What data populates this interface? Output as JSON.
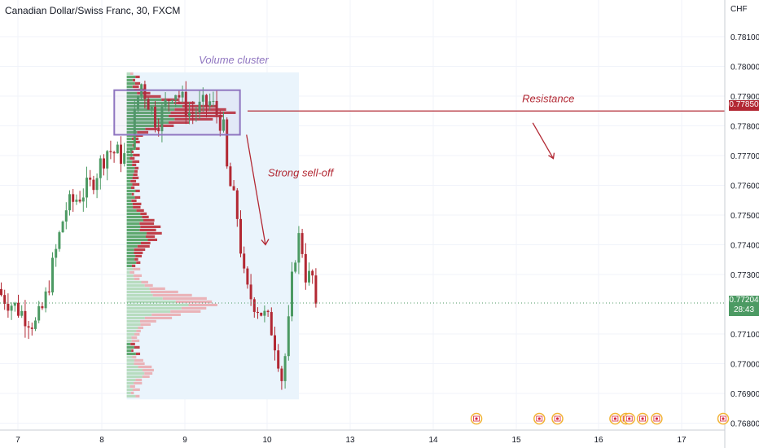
{
  "header": {
    "symbol_title": "Canadian Dollar/Swiss Franc, 30, FXCM",
    "axis_unit": "CHF"
  },
  "colors": {
    "bull": "#4c9a63",
    "bear": "#b22833",
    "annotation_purple": "#8f75c0",
    "annotation_red": "#b22833",
    "profile_zone": "#eaf4fc"
  },
  "price_tags": {
    "resistance": "0.77850",
    "last": "0.77204",
    "countdown": "28:43"
  },
  "chart_data": {
    "type": "candlestick",
    "title": "Canadian Dollar/Swiss Franc, 30, FXCM",
    "ylabel": "CHF",
    "ylim": [
      0.7675,
      0.7822
    ],
    "y_ticks": [
      "0.78100",
      "0.78000",
      "0.77900",
      "0.77800",
      "0.77700",
      "0.77600",
      "0.77500",
      "0.77400",
      "0.77300",
      "0.77204",
      "0.77100",
      "0.77000",
      "0.76900",
      "0.76800"
    ],
    "x_ticks": [
      "7",
      "8",
      "9",
      "10",
      "13",
      "14",
      "15",
      "16",
      "17"
    ],
    "series": [
      {
        "name": "price path",
        "points": [
          [
            6.75,
            0.7724
          ],
          [
            7.0,
            0.7718
          ],
          [
            7.2,
            0.7713
          ],
          [
            7.3,
            0.772
          ],
          [
            7.55,
            0.7752
          ],
          [
            7.85,
            0.776
          ],
          [
            8.05,
            0.7772
          ],
          [
            8.3,
            0.7769
          ],
          [
            8.45,
            0.7795
          ],
          [
            8.65,
            0.7781
          ],
          [
            8.85,
            0.7793
          ],
          [
            9.05,
            0.7784
          ],
          [
            9.3,
            0.7788
          ],
          [
            9.45,
            0.778
          ],
          [
            9.5,
            0.7764
          ],
          [
            9.62,
            0.775
          ],
          [
            9.72,
            0.7725
          ],
          [
            9.9,
            0.7718
          ],
          [
            10.05,
            0.7713
          ],
          [
            10.2,
            0.7705
          ],
          [
            10.32,
            0.7695
          ],
          [
            10.45,
            0.7708
          ],
          [
            10.6,
            0.7735
          ],
          [
            10.75,
            0.7744
          ],
          [
            10.9,
            0.7728
          ],
          [
            11.08,
            0.773
          ],
          [
            11.2,
            0.7715
          ],
          [
            11.4,
            0.77204
          ]
        ]
      }
    ],
    "resistance_level": 0.7785,
    "last_price": 0.77204,
    "volume_profile": {
      "price_range": [
        0.7688,
        0.7798
      ],
      "zone_x_range": [
        8.3,
        10.75
      ]
    },
    "annotations": [
      "Volume cluster",
      "Resistance",
      "Strong sell-off"
    ]
  }
}
